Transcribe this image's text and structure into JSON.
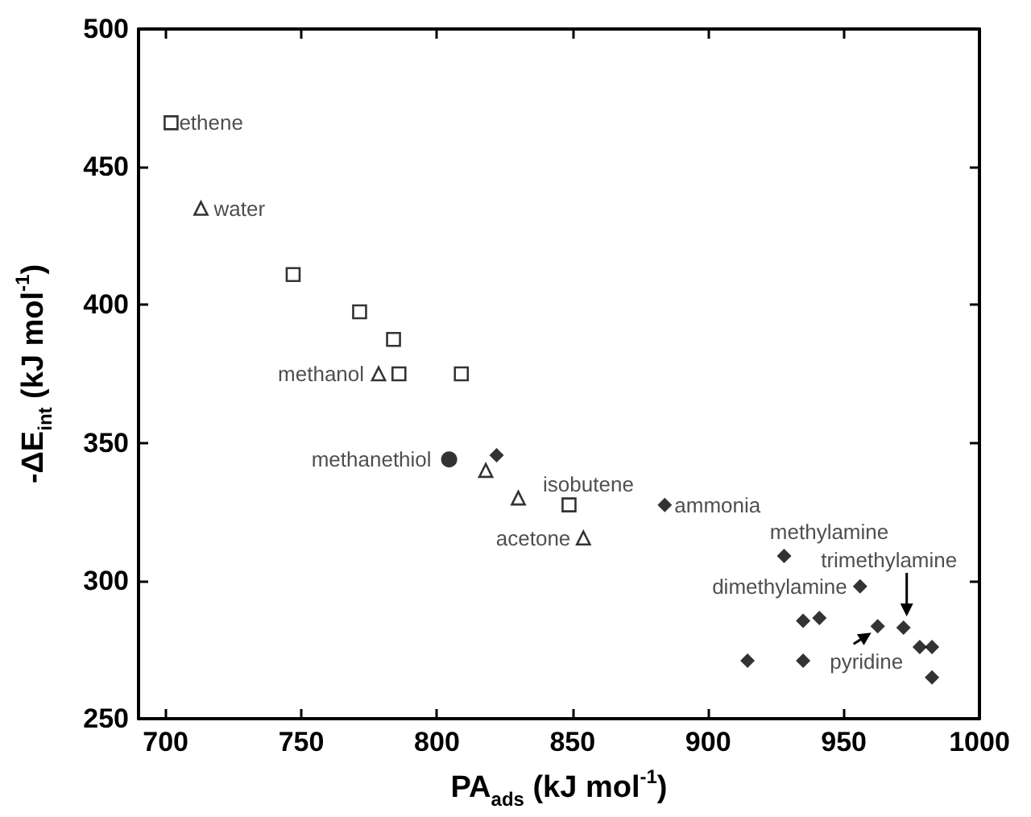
{
  "chart_data": {
    "type": "scatter",
    "xlabel": "PA$_{ads}$ (kJ mol$^{-1}$)",
    "ylabel": "-ΔE$_{int}$ (kJ mol$^{-1}$)",
    "xlim": [
      690,
      1000
    ],
    "xticks": [
      700,
      750,
      800,
      850,
      900,
      950,
      1000
    ],
    "ylim": [
      250,
      500
    ],
    "yticks": [
      250,
      300,
      350,
      400,
      450,
      500
    ],
    "grid": false,
    "series": [
      {
        "color": "#000000",
        "marker": "square",
        "x": [
          702,
          747,
          771.5,
          784,
          786,
          809,
          848.7
        ],
        "values": [
          466,
          411,
          397.5,
          387.5,
          375,
          375,
          327.5
        ]
      },
      {
        "color": "#000000",
        "marker": "triangle",
        "x": [
          713,
          778.5,
          818,
          830,
          854
        ],
        "values": [
          435,
          375,
          340,
          330,
          315.5
        ]
      },
      {
        "color": "#000000",
        "marker": "circle",
        "x": [
          804.5
        ],
        "values": [
          344
        ]
      },
      {
        "color": "#000000",
        "marker": "diamond",
        "x": [
          822,
          884,
          928,
          956,
          935,
          941,
          962.5,
          972,
          978,
          982.5,
          914.5,
          935,
          982.5
        ],
        "values": [
          345.5,
          327.5,
          309,
          298,
          285.5,
          286.5,
          283.5,
          283,
          276,
          276,
          271,
          271,
          265
        ]
      }
    ],
    "annotations": [
      {
        "text": "ethene",
        "x": 702,
        "y": 466
      },
      {
        "text": "water",
        "x": 713,
        "y": 435
      },
      {
        "text": "methanol",
        "x": 778.5,
        "y": 375
      },
      {
        "text": "methanethiol",
        "x": 804.5,
        "y": 344
      },
      {
        "text": "isobutene",
        "x": 848.7,
        "y": 327.5
      },
      {
        "text": "acetone",
        "x": 854,
        "y": 315.5
      },
      {
        "text": "ammonia",
        "x": 884,
        "y": 327.5
      },
      {
        "text": "methylamine",
        "x": 928,
        "y": 309
      },
      {
        "text": "dimethylamine",
        "x": 956,
        "y": 298
      },
      {
        "text": "trimethylamine",
        "x": 972,
        "y": 283
      },
      {
        "text": "pyridine",
        "x": 962.5,
        "y": 283.5
      }
    ]
  }
}
